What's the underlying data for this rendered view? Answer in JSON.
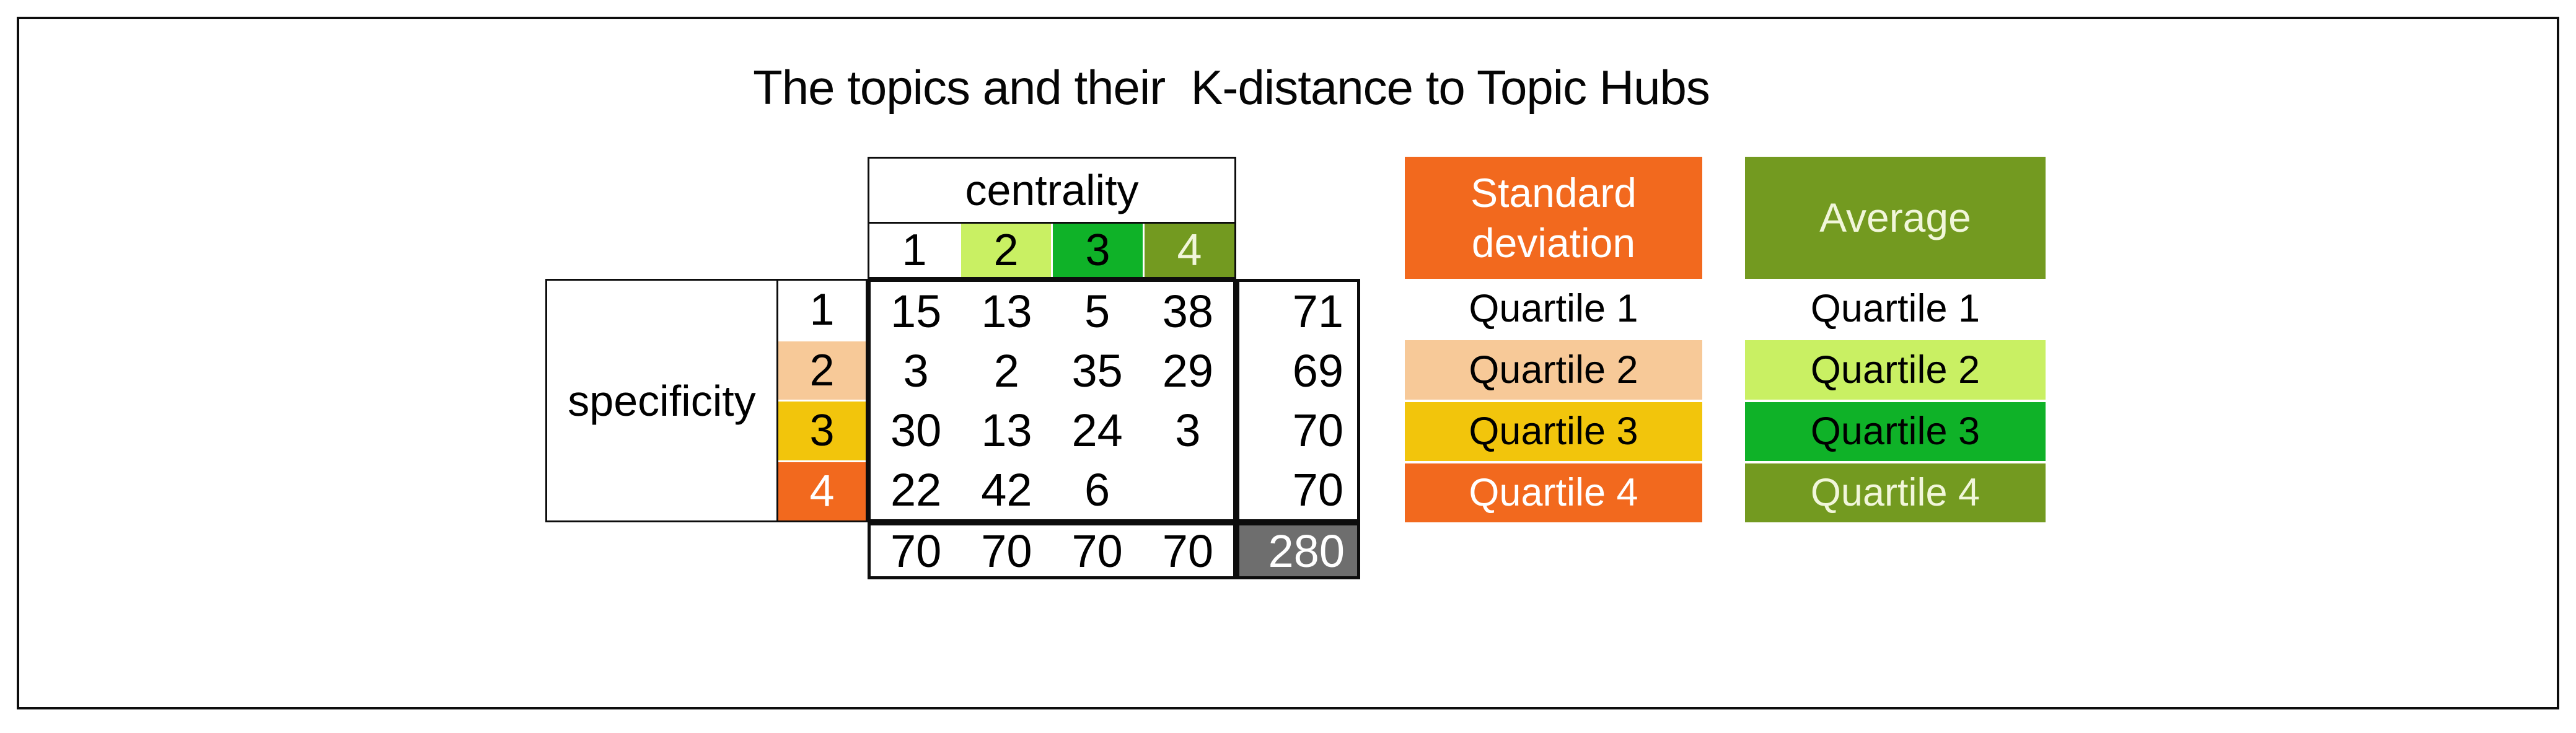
{
  "title": "The topics and their  K-distance to Topic Hubs",
  "chart_data": {
    "type": "table",
    "title": "The topics and their K-distance to Topic Hubs",
    "col_axis": {
      "label": "centrality",
      "categories": [
        "1",
        "2",
        "3",
        "4"
      ]
    },
    "row_axis": {
      "label": "specificity",
      "categories": [
        "1",
        "2",
        "3",
        "4"
      ]
    },
    "values": [
      [
        15,
        13,
        5,
        38
      ],
      [
        3,
        2,
        35,
        29
      ],
      [
        30,
        13,
        24,
        3
      ],
      [
        22,
        42,
        6,
        null
      ]
    ],
    "row_totals": [
      71,
      69,
      70,
      70
    ],
    "col_totals": [
      70,
      70,
      70,
      70
    ],
    "grand_total": 280
  },
  "legends": {
    "standard_deviation": {
      "title": "Standard deviation",
      "items": [
        "Quartile 1",
        "Quartile 2",
        "Quartile 3",
        "Quartile 4"
      ],
      "colors": [
        "#FFFFFF",
        "#F7C998",
        "#F2C50C",
        "#F2691E"
      ]
    },
    "average": {
      "title": "Average",
      "items": [
        "Quartile 1",
        "Quartile 2",
        "Quartile 3",
        "Quartile 4"
      ],
      "colors": [
        "#FFFFFF",
        "#C9F063",
        "#0FB228",
        "#739A20"
      ]
    }
  },
  "colors": {
    "sd_header_bg": "#F2691E",
    "avg_header_bg": "#739A20",
    "grand_total_bg": "#6E6E6E",
    "border": "#0D0D0D"
  }
}
